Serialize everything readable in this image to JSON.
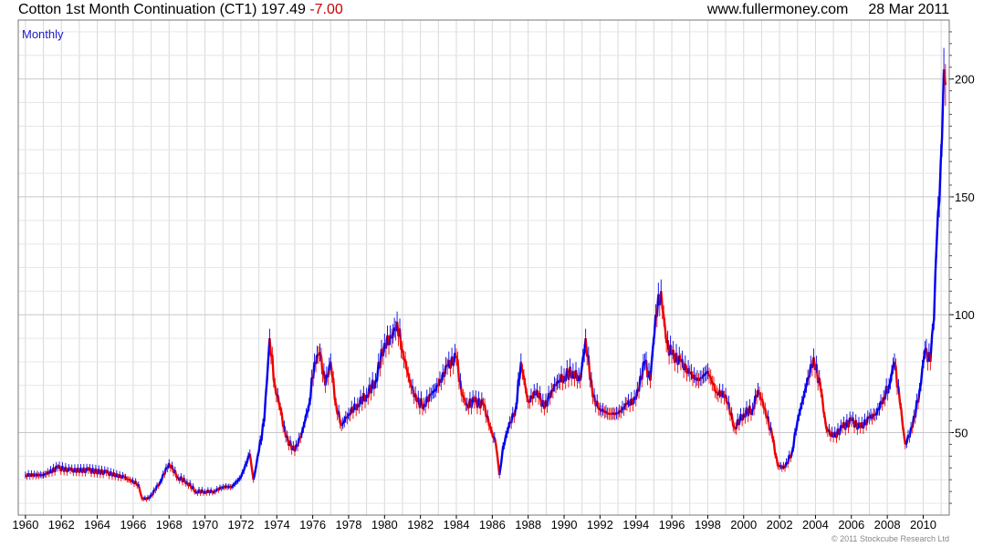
{
  "header": {
    "instrument": "Cotton 1st Month Continuation (CT1)",
    "last": "197.49",
    "change": "-7.00",
    "source": "www.fullermoney.com",
    "date": "28 Mar 2011"
  },
  "frequency_label": "Monthly",
  "footer": {
    "copyright": "© 2011 Stockcube Research Ltd"
  },
  "colors": {
    "up": "#0000ee",
    "down": "#ee0000",
    "grid": "#d9d9d9",
    "axis": "#000000"
  },
  "chart_data": {
    "type": "line",
    "title": "Cotton 1st Month Continuation (CT1)",
    "xlabel": "",
    "ylabel": "",
    "xlim": [
      1959.6,
      2011.45
    ],
    "ylim": [
      15,
      225
    ],
    "grid": true,
    "y_ticks": [
      50,
      100,
      150,
      200
    ],
    "x_ticks": [
      1960,
      1962,
      1964,
      1966,
      1968,
      1970,
      1972,
      1974,
      1976,
      1978,
      1980,
      1982,
      1984,
      1986,
      1988,
      1990,
      1992,
      1994,
      1996,
      1998,
      2000,
      2002,
      2004,
      2006,
      2008,
      2010
    ],
    "series": [
      {
        "name": "",
        "x": [
          1960,
          1961,
          1961.8,
          1962.5,
          1963.5,
          1964.5,
          1965.5,
          1966.3,
          1966.5,
          1966.9,
          1967.5,
          1968,
          1968.5,
          1969,
          1969.5,
          1970,
          1970.5,
          1971,
          1971.5,
          1972,
          1972.5,
          1972.7,
          1973,
          1973.3,
          1973.6,
          1973.9,
          1974.2,
          1974.5,
          1975,
          1975.4,
          1975.8,
          1976.1,
          1976.4,
          1976.7,
          1977,
          1977.3,
          1977.6,
          1978,
          1978.5,
          1979,
          1979.5,
          1980,
          1980.4,
          1980.7,
          1981,
          1981.4,
          1981.8,
          1982.2,
          1982.6,
          1983,
          1983.5,
          1984,
          1984.3,
          1984.6,
          1985,
          1985.5,
          1985.9,
          1986.2,
          1986.4,
          1986.6,
          1986.9,
          1987.3,
          1987.6,
          1988,
          1988.5,
          1988.9,
          1989.3,
          1989.7,
          1990,
          1990.5,
          1990.9,
          1991.2,
          1991.6,
          1992,
          1992.5,
          1993,
          1993.5,
          1994,
          1994.5,
          1994.8,
          1995.1,
          1995.4,
          1995.7,
          1996,
          1996.5,
          1997,
          1997.5,
          1998,
          1998.5,
          1999,
          1999.5,
          2000,
          2000.5,
          2000.8,
          2001.2,
          2001.6,
          2001.9,
          2002.3,
          2002.7,
          2003,
          2003.5,
          2003.9,
          2004.3,
          2004.6,
          2005,
          2005.5,
          2006,
          2006.5,
          2007,
          2007.4,
          2007.8,
          2008.1,
          2008.4,
          2008.7,
          2009,
          2009.4,
          2009.8,
          2010.1,
          2010.4,
          2010.6,
          2010.75,
          2010.9,
          2011.05,
          2011.15,
          2011.24
        ],
        "values": [
          32,
          32,
          35,
          34,
          34,
          33,
          31,
          28,
          22,
          22,
          29,
          37,
          31,
          29,
          25,
          25,
          25,
          27,
          27,
          31,
          41,
          30,
          42,
          55,
          90,
          70,
          60,
          48,
          42,
          50,
          62,
          80,
          84,
          70,
          80,
          62,
          53,
          58,
          62,
          66,
          72,
          88,
          90,
          97,
          85,
          72,
          63,
          62,
          66,
          70,
          78,
          82,
          66,
          62,
          63,
          62,
          52,
          45,
          32,
          44,
          52,
          60,
          80,
          63,
          68,
          60,
          68,
          72,
          74,
          76,
          72,
          90,
          65,
          60,
          58,
          58,
          62,
          64,
          80,
          72,
          100,
          110,
          88,
          83,
          80,
          75,
          72,
          76,
          67,
          66,
          52,
          58,
          60,
          68,
          60,
          48,
          36,
          35,
          42,
          55,
          70,
          82,
          68,
          52,
          48,
          52,
          55,
          52,
          56,
          58,
          65,
          70,
          80,
          63,
          45,
          52,
          68,
          85,
          80,
          98,
          130,
          148,
          175,
          204,
          197.49
        ]
      }
    ]
  }
}
